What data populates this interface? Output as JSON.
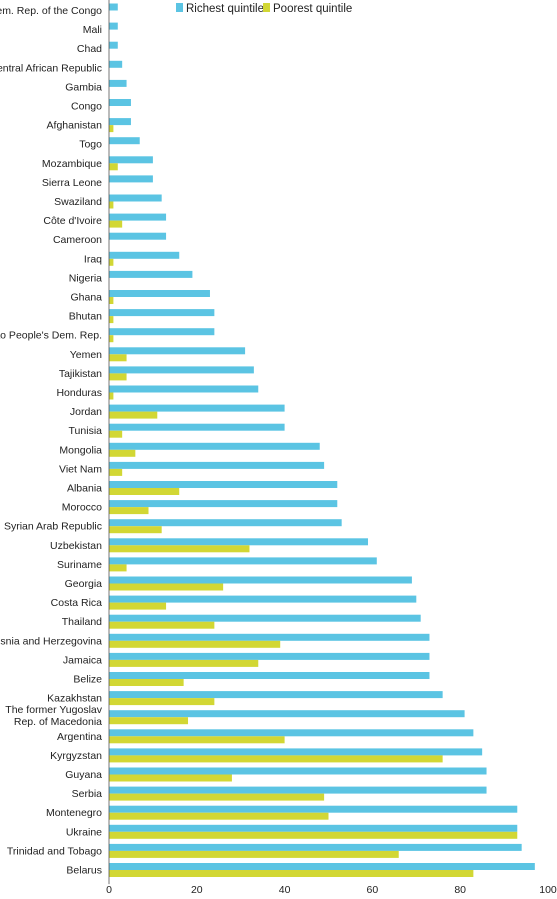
{
  "chart_data": {
    "type": "bar",
    "orientation": "horizontal",
    "categories": [
      "Dem. Rep. of the Congo",
      "Mali",
      "Chad",
      "Central African Republic",
      "Gambia",
      "Congo",
      "Afghanistan",
      "Togo",
      "Mozambique",
      "Sierra Leone",
      "Swaziland",
      "Côte d'Ivoire",
      "Cameroon",
      "Iraq",
      "Nigeria",
      "Ghana",
      "Bhutan",
      "Lao People's Dem. Rep.",
      "Yemen",
      "Tajikistan",
      "Honduras",
      "Jordan",
      "Tunisia",
      "Mongolia",
      "Viet Nam",
      "Albania",
      "Morocco",
      "Syrian Arab Republic",
      "Uzbekistan",
      "Suriname",
      "Georgia",
      "Costa Rica",
      "Thailand",
      "Bosnia and Herzegovina",
      "Jamaica",
      "Belize",
      "Kazakhstan",
      "The former Yugoslav Rep. of Macedonia",
      "Argentina",
      "Kyrgyzstan",
      "Guyana",
      "Serbia",
      "Montenegro",
      "Ukraine",
      "Trinidad and Tobago",
      "Belarus"
    ],
    "category_lines": [
      [
        "Dem. Rep. of the Congo"
      ],
      [
        "Mali"
      ],
      [
        "Chad"
      ],
      [
        "Central African Republic"
      ],
      [
        "Gambia"
      ],
      [
        "Congo"
      ],
      [
        "Afghanistan"
      ],
      [
        "Togo"
      ],
      [
        "Mozambique"
      ],
      [
        "Sierra Leone"
      ],
      [
        "Swaziland"
      ],
      [
        "Côte d'Ivoire"
      ],
      [
        "Cameroon"
      ],
      [
        "Iraq"
      ],
      [
        "Nigeria"
      ],
      [
        "Ghana"
      ],
      [
        "Bhutan"
      ],
      [
        "Lao People's Dem. Rep."
      ],
      [
        "Yemen"
      ],
      [
        "Tajikistan"
      ],
      [
        "Honduras"
      ],
      [
        "Jordan"
      ],
      [
        "Tunisia"
      ],
      [
        "Mongolia"
      ],
      [
        "Viet Nam"
      ],
      [
        "Albania"
      ],
      [
        "Morocco"
      ],
      [
        "Syrian Arab Republic"
      ],
      [
        "Uzbekistan"
      ],
      [
        "Suriname"
      ],
      [
        "Georgia"
      ],
      [
        "Costa Rica"
      ],
      [
        "Thailand"
      ],
      [
        "Bosnia and Herzegovina"
      ],
      [
        "Jamaica"
      ],
      [
        "Belize"
      ],
      [
        "Kazakhstan"
      ],
      [
        "The former Yugoslav",
        "Rep. of Macedonia"
      ],
      [
        "Argentina"
      ],
      [
        "Kyrgyzstan"
      ],
      [
        "Guyana"
      ],
      [
        "Serbia"
      ],
      [
        "Montenegro"
      ],
      [
        "Ukraine"
      ],
      [
        "Trinidad and Tobago"
      ],
      [
        "Belarus"
      ]
    ],
    "series": [
      {
        "name": "Richest quintile",
        "color": "#5BC4E3",
        "values": [
          2,
          2,
          2,
          3,
          4,
          5,
          5,
          7,
          10,
          10,
          12,
          13,
          13,
          16,
          19,
          23,
          24,
          24,
          31,
          33,
          34,
          40,
          40,
          48,
          49,
          52,
          52,
          53,
          59,
          61,
          69,
          70,
          71,
          73,
          73,
          73,
          76,
          81,
          83,
          85,
          86,
          86,
          93,
          93,
          94,
          97
        ]
      },
      {
        "name": "Poorest quintile",
        "color": "#D2D734",
        "values": [
          0,
          0,
          0,
          0,
          0,
          0,
          1,
          0,
          2,
          0,
          1,
          3,
          0,
          1,
          0,
          1,
          1,
          1,
          4,
          4,
          1,
          11,
          3,
          6,
          3,
          16,
          9,
          12,
          32,
          4,
          26,
          13,
          24,
          39,
          34,
          17,
          24,
          18,
          40,
          76,
          28,
          49,
          50,
          93,
          66,
          83
        ]
      }
    ],
    "x_ticks": [
      0,
      20,
      40,
      60,
      80,
      100
    ],
    "xlim": [
      0,
      100
    ],
    "title": "",
    "xlabel": "",
    "ylabel": "",
    "legend_position": "top",
    "grid": false
  }
}
